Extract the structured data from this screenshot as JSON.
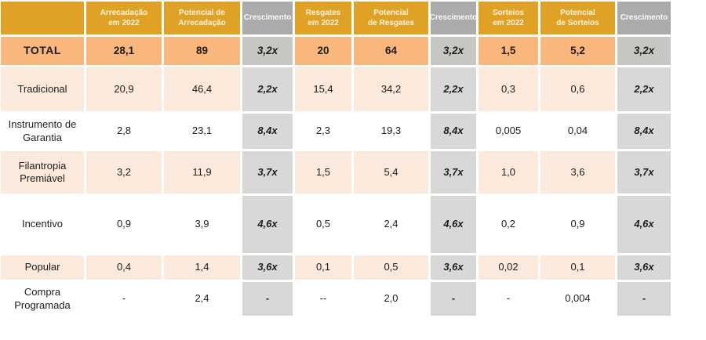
{
  "colors": {
    "header_orange": "#DFA224",
    "header_gray": "#ABABAB",
    "total_orange": "#F9B77C",
    "total_gray": "#C6C6C3",
    "row_peach": "#FBE9DB",
    "row_white": "#FFFFFF",
    "crescimento_gray": "#D8D8D6",
    "header_text": "#FCF4E2",
    "body_text": "#1D1D1D"
  },
  "chart_data": {
    "type": "table",
    "columns": [
      {
        "label": "",
        "line1": "",
        "line2": ""
      },
      {
        "label": "Arrecadação em 2022",
        "line1": "Arrecadação",
        "line2": "em 2022"
      },
      {
        "label": "Potencial de Arrecadação",
        "line1": "Potencial de",
        "line2": "Arrecadação"
      },
      {
        "label": "Crescimento",
        "line1": "Crescimento",
        "line2": ""
      },
      {
        "label": "Resgates em 2022",
        "line1": "Resgates",
        "line2": "em 2022"
      },
      {
        "label": "Potencial de Resgates",
        "line1": "Potencial",
        "line2": "de Resgates"
      },
      {
        "label": "Crescimento",
        "line1": "Crescimento",
        "line2": ""
      },
      {
        "label": "Sorteios em 2022",
        "line1": "Sorteios",
        "line2": "em 2022"
      },
      {
        "label": "Potencial de Sorteios",
        "line1": "Potencial",
        "line2": "de Sorteios"
      },
      {
        "label": "Crescimento",
        "line1": "Crescimento",
        "line2": ""
      }
    ],
    "rows": [
      {
        "label": "TOTAL",
        "values": [
          "28,1",
          "89",
          "3,2x",
          "20",
          "64",
          "3,2x",
          "1,5",
          "5,2",
          "3,2x"
        ]
      },
      {
        "label": "Tradicional",
        "values": [
          "20,9",
          "46,4",
          "2,2x",
          "15,4",
          "34,2",
          "2,2x",
          "0,3",
          "0,6",
          "2,2x"
        ]
      },
      {
        "label": "Instrumento de Garantia",
        "values": [
          "2,8",
          "23,1",
          "8,4x",
          "2,3",
          "19,3",
          "8,4x",
          "0,005",
          "0,04",
          "8,4x"
        ]
      },
      {
        "label": "Filantropia Premiável",
        "values": [
          "3,2",
          "11,9",
          "3,7x",
          "1,5",
          "5,4",
          "3,7x",
          "1,0",
          "3,6",
          "3,7x"
        ]
      },
      {
        "label": "Incentivo",
        "values": [
          "0,9",
          "3,9",
          "4,6x",
          "0,5",
          "2,4",
          "4,6x",
          "0,2",
          "0,9",
          "4,6x"
        ]
      },
      {
        "label": "Popular",
        "values": [
          "0,4",
          "1,4",
          "3,6x",
          "0,1",
          "0,5",
          "3,6x",
          "0,02",
          "0,1",
          "3,6x"
        ]
      },
      {
        "label": "Compra Programada",
        "values": [
          "-",
          "2,4",
          "-",
          "--",
          "2,0",
          "-",
          "-",
          "0,004",
          "-"
        ]
      }
    ]
  }
}
